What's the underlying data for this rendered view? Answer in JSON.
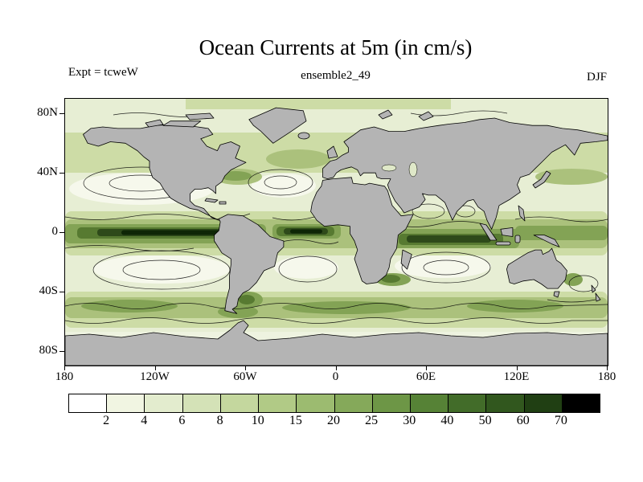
{
  "chart_data": {
    "type": "heatmap",
    "title": "Ocean Currents at 5m (in cm/s)",
    "annotations": {
      "experiment": "Expt = tcweW",
      "ensemble": "ensemble2_49",
      "season": "DJF"
    },
    "field": "ocean current speed at 5 m depth, filled contours with overlaid streamlines and gray land mask",
    "units": "cm/s",
    "projection": "equirectangular latitude-longitude, 180W to 180E, 90S to 90N",
    "x_axis": {
      "ticks": [
        {
          "label": "180",
          "lon": -180
        },
        {
          "label": "120W",
          "lon": -120
        },
        {
          "label": "60W",
          "lon": -60
        },
        {
          "label": "0",
          "lon": 0
        },
        {
          "label": "60E",
          "lon": 60
        },
        {
          "label": "120E",
          "lon": 120
        },
        {
          "label": "180",
          "lon": 180
        }
      ],
      "range_deg": [
        -180,
        180
      ]
    },
    "y_axis": {
      "ticks": [
        {
          "label": "80N",
          "lat": 80
        },
        {
          "label": "40N",
          "lat": 40
        },
        {
          "label": "0",
          "lat": 0
        },
        {
          "label": "40S",
          "lat": -40
        },
        {
          "label": "80S",
          "lat": -80
        }
      ],
      "range_deg": [
        -90,
        90
      ]
    },
    "colorbar": {
      "levels": [
        2,
        4,
        6,
        8,
        10,
        15,
        20,
        25,
        30,
        40,
        50,
        60,
        70
      ],
      "colors": [
        "#ffffff",
        "#f1f5e2",
        "#e3ecce",
        "#d4e2b7",
        "#c4d79e",
        "#b1ca86",
        "#9cbb70",
        "#85a95a",
        "#6d9646",
        "#568236",
        "#426c29",
        "#31571e",
        "#203f13",
        "#000000"
      ]
    },
    "land_color": "#b4b4b4",
    "notable_features": [
      "strong dark-green/black equatorial current bands (>40 cm/s) across the Pacific, Atlantic and Indian Oceans",
      "enhanced speeds along the Antarctic Circumpolar Current belt near 40S-60S",
      "locally strong western boundary currents (Gulf Stream, Kuroshio, Agulhas, Brazil/Malvinas)",
      "weak speeds (<4 cm/s, pale/white) in the subtropical gyre interiors"
    ]
  }
}
